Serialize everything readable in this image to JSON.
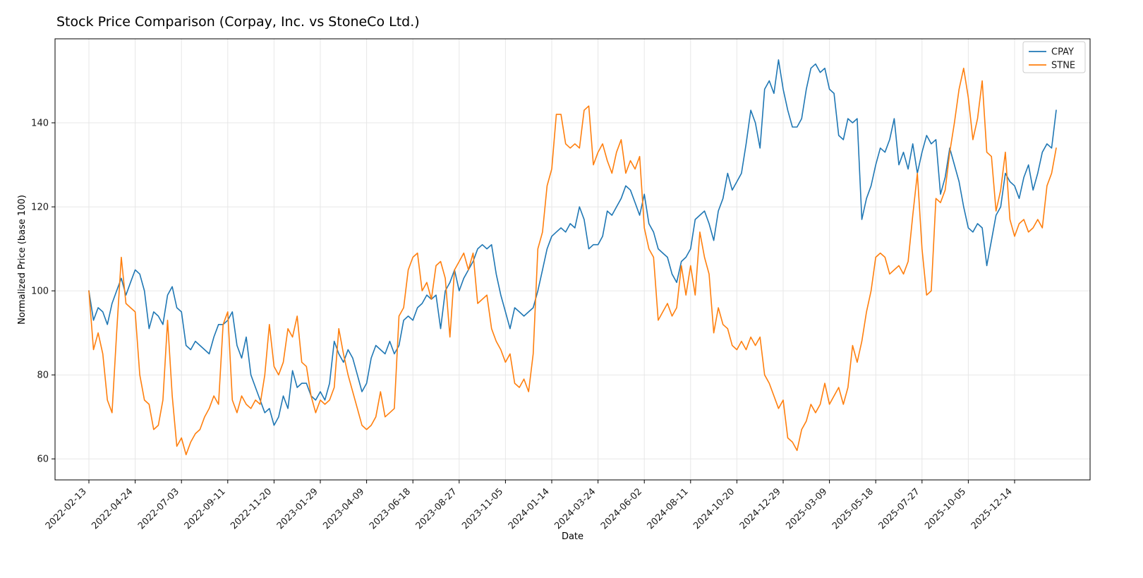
{
  "chart_data": {
    "type": "line",
    "title": "Stock Price Comparison (Corpay, Inc. vs StoneCo Ltd.)",
    "xlabel": "Date",
    "ylabel": "Normalized Price (base 100)",
    "x_unit": "weekly",
    "x_tick_every": 10,
    "x_tick_labels": [
      "2022-02-13",
      "2022-04-24",
      "2022-07-03",
      "2022-09-11",
      "2022-11-20",
      "2023-01-29",
      "2023-04-09",
      "2023-06-18",
      "2023-08-27",
      "2023-11-05",
      "2024-01-14",
      "2024-03-24",
      "2024-06-02",
      "2024-08-11",
      "2024-10-20",
      "2024-12-29",
      "2025-03-09",
      "2025-05-18",
      "2025-07-27",
      "2025-10-05",
      "2025-12-14"
    ],
    "y_ticks": [
      60,
      80,
      100,
      120,
      140
    ],
    "ylim": [
      55,
      160
    ],
    "grid": true,
    "grid_color": "#e7e7e7",
    "spine_color": "#000000",
    "legend": {
      "position": "upper right",
      "entries": [
        "CPAY",
        "STNE"
      ]
    },
    "series": [
      {
        "name": "CPAY",
        "color": "#1f77b4",
        "values": [
          100,
          93,
          96,
          95,
          92,
          97,
          100,
          103,
          99,
          102,
          105,
          104,
          100,
          91,
          95,
          94,
          92,
          99,
          101,
          96,
          95,
          87,
          86,
          88,
          87,
          86,
          85,
          89,
          92,
          92,
          93,
          95,
          87,
          84,
          89,
          80,
          77,
          74,
          71,
          72,
          68,
          70,
          75,
          72,
          81,
          77,
          78,
          78,
          75,
          74,
          76,
          74,
          78,
          88,
          85,
          83,
          86,
          84,
          80,
          76,
          78,
          84,
          87,
          86,
          85,
          88,
          85,
          87,
          93,
          94,
          93,
          96,
          97,
          99,
          98,
          99,
          91,
          100,
          102,
          105,
          100,
          103,
          105,
          107,
          110,
          111,
          110,
          111,
          104,
          99,
          95,
          91,
          96,
          95,
          94,
          95,
          96,
          100,
          105,
          110,
          113,
          114,
          115,
          114,
          116,
          115,
          120,
          117,
          110,
          111,
          111,
          113,
          119,
          118,
          120,
          122,
          125,
          124,
          121,
          118,
          123,
          116,
          114,
          110,
          109,
          108,
          104,
          102,
          107,
          108,
          110,
          117,
          118,
          119,
          116,
          112,
          119,
          122,
          128,
          124,
          126,
          128,
          135,
          143,
          140,
          134,
          148,
          150,
          147,
          155,
          148,
          143,
          139,
          139,
          141,
          148,
          153,
          154,
          152,
          153,
          148,
          147,
          137,
          136,
          141,
          140,
          141,
          117,
          122,
          125,
          130,
          134,
          133,
          136,
          141,
          130,
          133,
          129,
          135,
          128,
          133,
          137,
          135,
          136,
          123,
          127,
          134,
          130,
          126,
          120,
          115,
          114,
          116,
          115,
          106,
          112,
          118,
          120,
          128,
          126,
          125,
          122,
          127,
          130,
          124,
          128,
          133,
          135,
          134,
          143
        ]
      },
      {
        "name": "STNE",
        "color": "#ff7f0e",
        "values": [
          100,
          86,
          90,
          85,
          74,
          71,
          90,
          108,
          97,
          96,
          95,
          80,
          74,
          73,
          67,
          68,
          74,
          93,
          75,
          63,
          65,
          61,
          64,
          66,
          67,
          70,
          72,
          75,
          73,
          92,
          95,
          74,
          71,
          75,
          73,
          72,
          74,
          73,
          80,
          92,
          82,
          80,
          83,
          91,
          89,
          94,
          83,
          82,
          75,
          71,
          74,
          73,
          74,
          77,
          91,
          85,
          80,
          76,
          72,
          68,
          67,
          68,
          70,
          76,
          70,
          71,
          72,
          94,
          96,
          105,
          108,
          109,
          100,
          102,
          98,
          106,
          107,
          103,
          89,
          105,
          107,
          109,
          105,
          109,
          97,
          98,
          99,
          91,
          88,
          86,
          83,
          85,
          78,
          77,
          79,
          76,
          85,
          110,
          114,
          125,
          129,
          142,
          142,
          135,
          134,
          135,
          134,
          143,
          144,
          130,
          133,
          135,
          131,
          128,
          133,
          136,
          128,
          131,
          129,
          132,
          115,
          110,
          108,
          93,
          95,
          97,
          94,
          96,
          106,
          99,
          106,
          99,
          114,
          108,
          104,
          90,
          96,
          92,
          91,
          87,
          86,
          88,
          86,
          89,
          87,
          89,
          80,
          78,
          75,
          72,
          74,
          65,
          64,
          62,
          67,
          69,
          73,
          71,
          73,
          78,
          73,
          75,
          77,
          73,
          77,
          87,
          83,
          88,
          95,
          100,
          108,
          109,
          108,
          104,
          105,
          106,
          104,
          107,
          118,
          128,
          110,
          99,
          100,
          122,
          121,
          124,
          133,
          140,
          148,
          153,
          146,
          136,
          141,
          150,
          133,
          132,
          119,
          124,
          133,
          117,
          113,
          116,
          117,
          114,
          115,
          117,
          115,
          125,
          128,
          134
        ]
      }
    ]
  }
}
